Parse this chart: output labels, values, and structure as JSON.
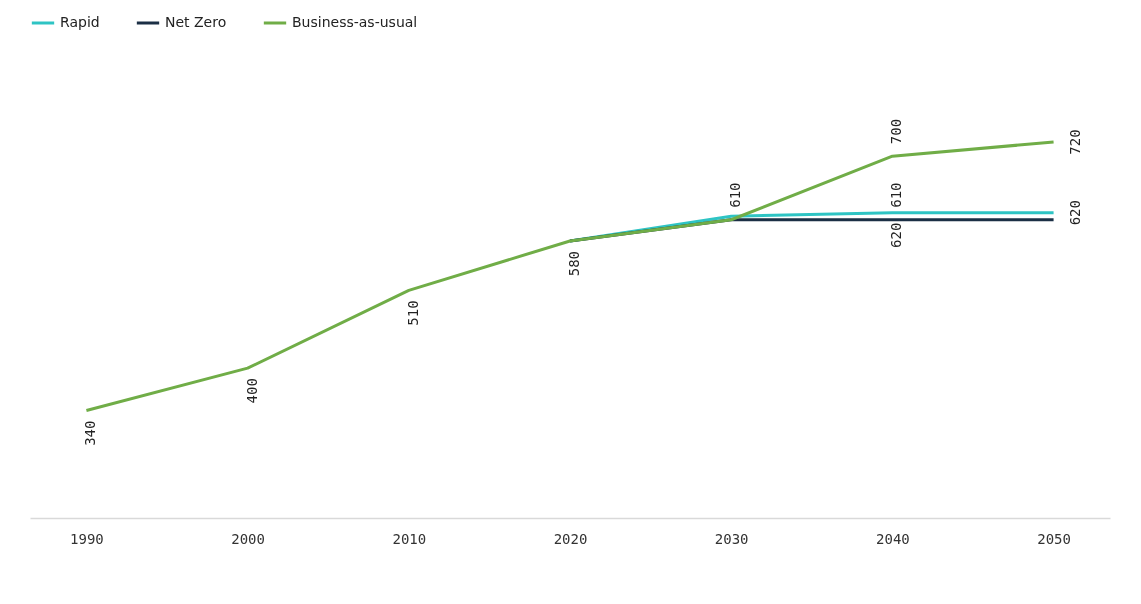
{
  "chart_data": {
    "type": "line",
    "categories": [
      "1990",
      "2000",
      "2010",
      "2020",
      "2030",
      "2040",
      "2050"
    ],
    "tick_labels": "x",
    "grid": false,
    "legend": "top",
    "marker": "none",
    "line_style": "solid",
    "series": [
      {
        "name": "Rapid",
        "color": "#2ec4c4",
        "values": [
          null,
          null,
          null,
          580,
          615,
          620,
          620
        ],
        "value_labels": [
          null,
          null,
          null,
          null,
          null,
          "620",
          "620"
        ]
      },
      {
        "name": "Net Zero",
        "color": "#1b2f45",
        "values": [
          null,
          null,
          null,
          580,
          610,
          610,
          610
        ],
        "value_labels": [
          null,
          null,
          null,
          null,
          null,
          "610",
          null
        ]
      },
      {
        "name": "Business-as-usual",
        "color": "#70ad47",
        "values": [
          340,
          400,
          510,
          580,
          610,
          700,
          720
        ],
        "value_labels": [
          "340",
          "400",
          "510",
          "580",
          "610",
          "700",
          "720"
        ]
      }
    ]
  }
}
